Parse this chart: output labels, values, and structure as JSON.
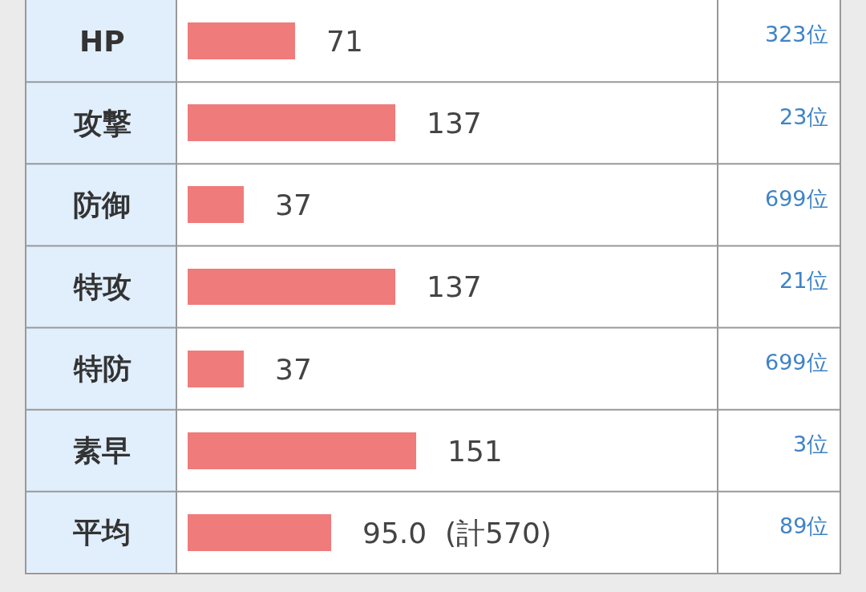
{
  "chart_data": {
    "type": "bar",
    "orientation": "horizontal",
    "categories": [
      "HP",
      "攻撃",
      "防御",
      "特攻",
      "特防",
      "素早",
      "平均"
    ],
    "values": [
      71,
      137,
      37,
      137,
      37,
      151,
      95.0
    ],
    "value_labels": [
      "71",
      "137",
      "37",
      "137",
      "37",
      "151",
      "95.0  (計570)"
    ],
    "color": "#ef7b7b",
    "annotations": [
      "323位",
      "23位",
      "699位",
      "21位",
      "699位",
      "3位",
      "89位"
    ]
  }
}
